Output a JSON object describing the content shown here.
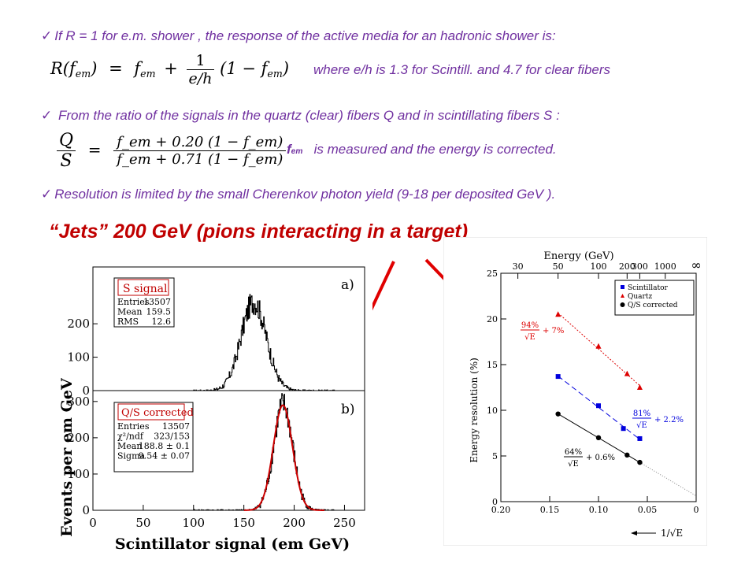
{
  "bullets": {
    "b1": "If  R = 1  for e.m. shower ,  the response of the active media  for  an hadronic shower is:",
    "b1_note": "where  e/h  is  1.3  for Scintill. and 4.7 for clear fibers",
    "b2": "From the ratio of the signals in the quartz (clear) fibers  Q and in scintillating fibers  S :",
    "b2_note_sym": "f",
    "b2_note_sub": "em",
    "b2_note": "is measured  and  the energy  is corrected.",
    "b3": "Resolution  is limited by the small Cherenkov photon yield  (9-18  per  deposited GeV )."
  },
  "formula1": {
    "lhs": "R(f",
    "lhs_sub": "em",
    "lhs_end": ")",
    "eq": "=",
    "f": "f",
    "f_sub": "em",
    "plus": "+",
    "num": "1",
    "den": "e/h",
    "tail": "(1 − f",
    "tail_sub": "em",
    "tail_end": ")"
  },
  "formula2": {
    "lhs_num": "Q",
    "lhs_den": "S",
    "eq": "=",
    "num": "f_em + 0.20 (1 − f_em)",
    "den": "f_em + 0.71 (1 − f_em)"
  },
  "headline": "“Jets”  200 GeV (pions interacting in a target)",
  "colors": {
    "purple": "#7030a0",
    "red": "#c00000",
    "arrow": "#e00000"
  },
  "chart_data": [
    {
      "type": "histogram",
      "panel": "a)",
      "legend_title": "S signal",
      "stats": [
        [
          "Entries",
          "13507"
        ],
        [
          "Mean",
          "159.5"
        ],
        [
          "RMS",
          "12.6"
        ]
      ],
      "ylabel": "Events per em GeV",
      "yticks": [
        0,
        100,
        200
      ],
      "ylim": [
        0,
        370
      ],
      "xlim": [
        0,
        270
      ],
      "peak": {
        "mean": 159.5,
        "rms": 12.6,
        "height": 265
      }
    },
    {
      "type": "histogram",
      "panel": "b)",
      "legend_title": "Q/S corrected",
      "stats": [
        [
          "Entries",
          "13507"
        ],
        [
          "χ²/ndf",
          "323/153"
        ],
        [
          "Mean",
          "188.8 ± 0.1"
        ],
        [
          "Sigma",
          "9.54 ± 0.07"
        ]
      ],
      "xlabel": "Scintillator signal (em GeV)",
      "xticks": [
        0,
        50,
        100,
        150,
        200,
        250
      ],
      "yticks": [
        0,
        100,
        200,
        300
      ],
      "ylim": [
        0,
        330
      ],
      "xlim": [
        0,
        270
      ],
      "peak": {
        "mean": 188.8,
        "sigma": 9.54,
        "height": 290
      }
    },
    {
      "type": "scatter",
      "xlabel": "1/√E",
      "ylabel": "Energy resolution (%)",
      "top_axis_label": "Energy (GeV)",
      "top_ticks": [
        "30",
        "50",
        "100",
        "200",
        "300",
        "1000",
        "∞"
      ],
      "top_tick_energies": [
        30,
        50,
        100,
        200,
        300,
        1000,
        "inf"
      ],
      "xticks": [
        "0.20",
        "0.15",
        "0.10",
        "0.05",
        "0"
      ],
      "xtick_values": [
        0.2,
        0.15,
        0.1,
        0.05,
        0
      ],
      "yticks": [
        0,
        5,
        10,
        15,
        20,
        25
      ],
      "xlim": [
        0.2,
        0
      ],
      "ylim": [
        0,
        25
      ],
      "legend": [
        "Scintillator",
        "Quartz",
        "Q/S corrected"
      ],
      "series": [
        {
          "name": "Scintillator",
          "color": "#0000dd",
          "marker": "square",
          "x": [
            0.1414,
            0.1,
            0.0745,
            0.0577
          ],
          "y": [
            13.7,
            10.5,
            8.0,
            6.9
          ]
        },
        {
          "name": "Quartz",
          "color": "#dd0000",
          "marker": "triangle",
          "x": [
            0.1414,
            0.1,
            0.0707,
            0.0577
          ],
          "y": [
            20.5,
            17.0,
            14.0,
            12.5
          ]
        },
        {
          "name": "Q/S corrected",
          "color": "#000000",
          "marker": "circle",
          "x": [
            0.1414,
            0.1,
            0.0707,
            0.0577
          ],
          "y": [
            9.6,
            7.0,
            5.1,
            4.3
          ]
        }
      ],
      "fit_annotations": [
        {
          "pct": "94%",
          "root": "√E",
          "const": "+ 7%",
          "color": "#dd0000"
        },
        {
          "pct": "81%",
          "root": "√E",
          "const": "+ 2.2%",
          "color": "#0000dd"
        },
        {
          "pct": "64%",
          "root": "√E",
          "const": "+ 0.6%",
          "color": "#000000"
        }
      ]
    }
  ]
}
